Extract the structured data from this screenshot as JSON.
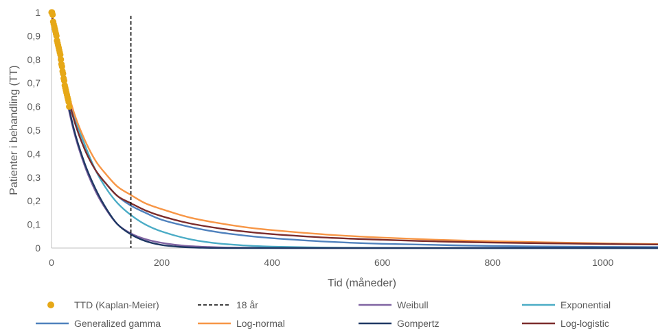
{
  "chart_data": {
    "type": "line",
    "title": "",
    "xlabel": "Tid (måneder)",
    "ylabel": "Patienter i behandling (TT)",
    "xlim": [
      0,
      1100
    ],
    "ylim": [
      0,
      1
    ],
    "x_ticks": [
      0,
      200,
      400,
      600,
      800,
      1000
    ],
    "y_ticks": [
      0,
      0.1,
      0.2,
      0.3,
      0.4,
      0.5,
      0.6,
      0.7,
      0.8,
      0.9,
      1
    ],
    "x_tick_labels": [
      "0",
      "200",
      "400",
      "600",
      "800",
      "1000"
    ],
    "y_tick_labels": [
      "0",
      "0,1",
      "0,2",
      "0,3",
      "0,4",
      "0,5",
      "0,6",
      "0,7",
      "0,8",
      "0,9",
      "1"
    ],
    "grid": false,
    "legend_position": "bottom",
    "reference_line": {
      "name": "18 år",
      "x": 144,
      "color": "#000000",
      "style": "dashed"
    },
    "series": [
      {
        "name": "TTD (Kaplan-Meier)",
        "kind": "points",
        "color": "#E6A817",
        "x": [
          0,
          1,
          2,
          3,
          4,
          5,
          6,
          7,
          8,
          9,
          10,
          11,
          12,
          13,
          14,
          15,
          16,
          17,
          18,
          19,
          20,
          21,
          22,
          23,
          24,
          25,
          26,
          27,
          28,
          29,
          30,
          31,
          32
        ],
        "y": [
          1.0,
          1.0,
          0.99,
          0.96,
          0.95,
          0.94,
          0.93,
          0.92,
          0.91,
          0.9,
          0.88,
          0.87,
          0.86,
          0.85,
          0.84,
          0.83,
          0.82,
          0.8,
          0.78,
          0.77,
          0.75,
          0.74,
          0.72,
          0.71,
          0.69,
          0.68,
          0.67,
          0.66,
          0.65,
          0.64,
          0.63,
          0.62,
          0.6
        ]
      },
      {
        "name": "Weibull",
        "kind": "curve",
        "color": "#8064A2",
        "x": [
          0,
          20,
          40,
          60,
          80,
          100,
          120,
          144,
          170,
          200,
          240,
          280,
          320,
          400,
          500,
          700,
          1100
        ],
        "y": [
          1.0,
          0.72,
          0.5,
          0.35,
          0.24,
          0.16,
          0.1,
          0.062,
          0.038,
          0.022,
          0.01,
          0.005,
          0.002,
          0.0004,
          0.0,
          0.0,
          0.0
        ]
      },
      {
        "name": "Exponential",
        "kind": "curve",
        "color": "#4BACC6",
        "x": [
          0,
          20,
          40,
          60,
          80,
          100,
          120,
          144,
          170,
          200,
          250,
          300,
          350,
          400,
          500,
          600,
          800,
          1100
        ],
        "y": [
          1.0,
          0.76,
          0.57,
          0.44,
          0.33,
          0.25,
          0.19,
          0.14,
          0.1,
          0.07,
          0.038,
          0.02,
          0.011,
          0.006,
          0.002,
          0.0005,
          0.0,
          0.0
        ]
      },
      {
        "name": "Generalized gamma",
        "kind": "curve",
        "color": "#4F81BD",
        "x": [
          0,
          20,
          40,
          60,
          80,
          100,
          120,
          144,
          170,
          200,
          250,
          300,
          350,
          400,
          500,
          600,
          800,
          1000,
          1100
        ],
        "y": [
          1.0,
          0.74,
          0.55,
          0.42,
          0.33,
          0.27,
          0.22,
          0.18,
          0.15,
          0.12,
          0.09,
          0.068,
          0.053,
          0.042,
          0.027,
          0.018,
          0.009,
          0.005,
          0.004
        ]
      },
      {
        "name": "Log-normal",
        "kind": "curve",
        "color": "#F79646",
        "x": [
          0,
          20,
          40,
          60,
          80,
          100,
          120,
          144,
          170,
          200,
          250,
          300,
          350,
          400,
          500,
          600,
          700,
          800,
          900,
          1000,
          1100
        ],
        "y": [
          1.0,
          0.76,
          0.58,
          0.46,
          0.37,
          0.31,
          0.26,
          0.225,
          0.19,
          0.165,
          0.13,
          0.107,
          0.089,
          0.076,
          0.057,
          0.044,
          0.035,
          0.029,
          0.024,
          0.02,
          0.017
        ]
      },
      {
        "name": "Gompertz",
        "kind": "curve",
        "color": "#1F3864",
        "x": [
          0,
          20,
          40,
          60,
          80,
          100,
          120,
          144,
          170,
          200,
          240,
          280,
          320,
          400,
          500,
          700,
          1100
        ],
        "y": [
          1.0,
          0.73,
          0.51,
          0.36,
          0.25,
          0.165,
          0.1,
          0.058,
          0.03,
          0.013,
          0.004,
          0.001,
          0.0,
          0.0,
          0.0,
          0.0,
          0.0
        ]
      },
      {
        "name": "Log-logistic",
        "kind": "curve",
        "color": "#7B2C2C",
        "x": [
          0,
          20,
          40,
          60,
          80,
          100,
          120,
          144,
          170,
          200,
          250,
          300,
          350,
          400,
          500,
          600,
          700,
          800,
          900,
          1000,
          1100
        ],
        "y": [
          1.0,
          0.74,
          0.55,
          0.42,
          0.33,
          0.27,
          0.22,
          0.19,
          0.16,
          0.135,
          0.105,
          0.085,
          0.07,
          0.059,
          0.044,
          0.035,
          0.028,
          0.023,
          0.02,
          0.017,
          0.015
        ]
      }
    ]
  },
  "legend": {
    "items": [
      {
        "label": "TTD (Kaplan-Meier)",
        "color": "#E6A817",
        "marker": "dot"
      },
      {
        "label": "18 år",
        "color": "#000000",
        "marker": "dashed"
      },
      {
        "label": "Weibull",
        "color": "#8064A2",
        "marker": "line"
      },
      {
        "label": "Exponential",
        "color": "#4BACC6",
        "marker": "line"
      },
      {
        "label": "Generalized gamma",
        "color": "#4F81BD",
        "marker": "line"
      },
      {
        "label": "Log-normal",
        "color": "#F79646",
        "marker": "line"
      },
      {
        "label": "Gompertz",
        "color": "#1F3864",
        "marker": "line"
      },
      {
        "label": "Log-logistic",
        "color": "#7B2C2C",
        "marker": "line"
      }
    ]
  }
}
